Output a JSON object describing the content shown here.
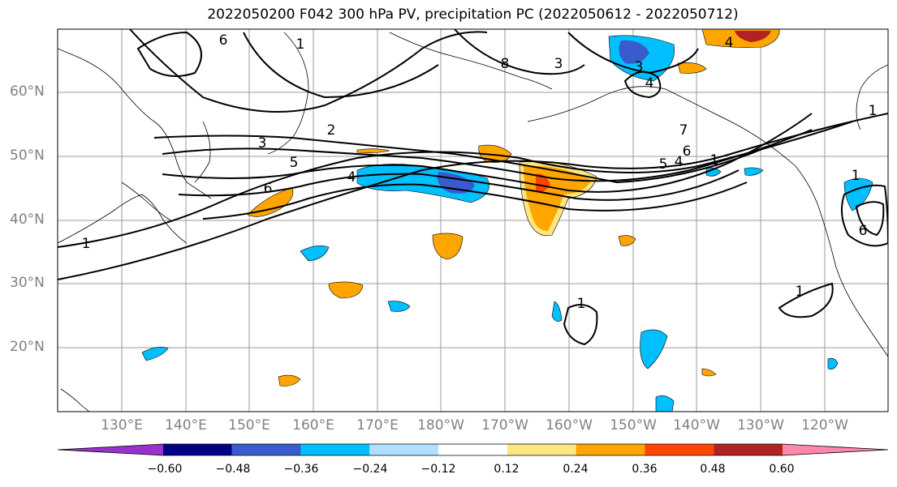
{
  "title": "2022050200 F042 300 hPa PV, precipitation PC (2022050612 - 2022050712)",
  "lat_labels": [
    "60°N",
    "50°N",
    "40°N",
    "30°N",
    "20°N"
  ],
  "lon_labels": [
    "130°E",
    "140°E",
    "150°E",
    "160°E",
    "170°E",
    "180°W",
    "170°W",
    "160°W",
    "150°W",
    "140°W",
    "130°W",
    "120°W"
  ],
  "colorbar": {
    "ticks": [
      "−0.60",
      "−0.48",
      "−0.36",
      "−0.24",
      "−0.12",
      "0.12",
      "0.24",
      "0.36",
      "0.48",
      "0.60"
    ],
    "colors": [
      "#9932cc",
      "#00008b",
      "#3a5bcd",
      "#00bfff",
      "#b0e0ff",
      "#ffffff",
      "#ffe680",
      "#ffa500",
      "#ff4500",
      "#b22222",
      "#ff88aa"
    ]
  },
  "contour_labels": [
    "6",
    "1",
    "8",
    "3",
    "4",
    "3",
    "4",
    "1",
    "2",
    "3",
    "5",
    "6",
    "4",
    "7",
    "6",
    "5",
    "4",
    "1",
    "1",
    "1",
    "1",
    "6",
    "1"
  ],
  "colors": {
    "positive_light": "#ffe680",
    "positive_mid": "#ffa500",
    "positive_strong": "#ff4500",
    "positive_extreme": "#b22222",
    "negative_light": "#b0e0ff",
    "negative_mid": "#00bfff",
    "negative_strong": "#3a5bcd",
    "negative_extreme": "#00008b",
    "grid": "#999999",
    "coast": "#000000"
  }
}
